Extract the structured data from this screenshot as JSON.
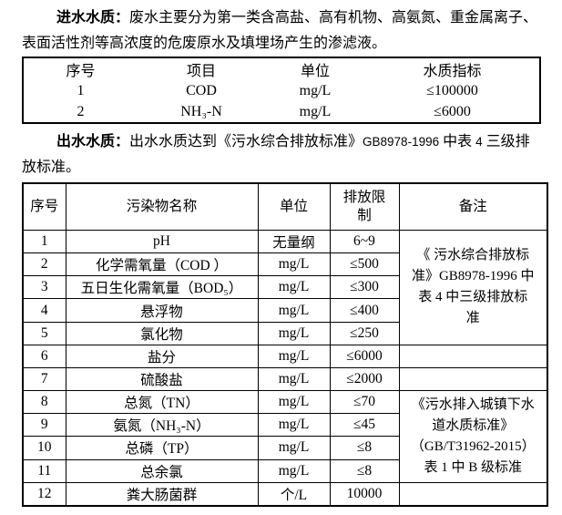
{
  "colors": {
    "text": "#000000",
    "border": "#000000",
    "background": "#ffffff"
  },
  "paragraphs": {
    "p1": {
      "segments": [
        {
          "t": "进水水质：",
          "cls": "bold"
        },
        {
          "t": "废水主要分为第一类含高盐、高有机物、高氨氮、重金属离子、\n表面活性剂等高浓度的危废原水及填埋场产生的渗滤液。",
          "cls": ""
        }
      ]
    },
    "p2": {
      "segments": [
        {
          "t": "出水水质：",
          "cls": "bold"
        },
        {
          "t": "出水水质达到《污水综合排放标准》",
          "cls": ""
        },
        {
          "t": "GB8978-1996",
          "cls": "latin"
        },
        {
          "t": " 中表 ",
          "cls": ""
        },
        {
          "t": "4",
          "cls": "latin"
        },
        {
          "t": " 三级排\n放标准。",
          "cls": ""
        }
      ]
    }
  },
  "table1": {
    "headers": [
      "序号",
      "项目",
      "单位",
      "水质指标"
    ],
    "rows": [
      [
        "1",
        "COD",
        "mg/L",
        "≤100000"
      ],
      [
        "2",
        "NH₃-N",
        "mg/L",
        "≤6000"
      ]
    ]
  },
  "table2": {
    "headers": [
      "序号",
      "污染物名称",
      "单位",
      "排放限\n制",
      "备注"
    ],
    "rows": [
      [
        "1",
        "pH",
        "无量纲",
        "6~9"
      ],
      [
        "2",
        "化学需氧量（COD ）",
        "mg/L",
        "≤500"
      ],
      [
        "3",
        "五日生化需氧量（BOD₅）",
        "mg/L",
        "≤300"
      ],
      [
        "4",
        "悬浮物",
        "mg/L",
        "≤400"
      ],
      [
        "5",
        "氯化物",
        "mg/L",
        "≤250"
      ],
      [
        "6",
        "盐分",
        "mg/L",
        "≤6000"
      ],
      [
        "7",
        "硫酸盐",
        "mg/L",
        "≤2000"
      ],
      [
        "8",
        "总氮（TN）",
        "mg/L",
        "≤70"
      ],
      [
        "9",
        "氨氮（NH₃-N）",
        "mg/L",
        "≤45"
      ],
      [
        "10",
        "总磷（TP）",
        "mg/L",
        "≤8"
      ],
      [
        "11",
        "总余氯",
        "mg/L",
        "≤8"
      ],
      [
        "12",
        "粪大肠菌群",
        "个/L",
        "10000"
      ]
    ],
    "remarks": [
      {
        "row": 1,
        "span": 5,
        "text": "《 污水综合排放标\n准》GB8978-1996 中\n表 4 中三级排放标\n准"
      },
      {
        "row": 6,
        "span": 1,
        "text": ""
      },
      {
        "row": 7,
        "span": 1,
        "text": ""
      },
      {
        "row": 8,
        "span": 4,
        "text": "《污水排入城镇下水\n道水质标准》\n（GB/T31962-2015）\n表 1 中 B 级标准"
      },
      {
        "row": 12,
        "span": 1,
        "text": ""
      }
    ]
  }
}
